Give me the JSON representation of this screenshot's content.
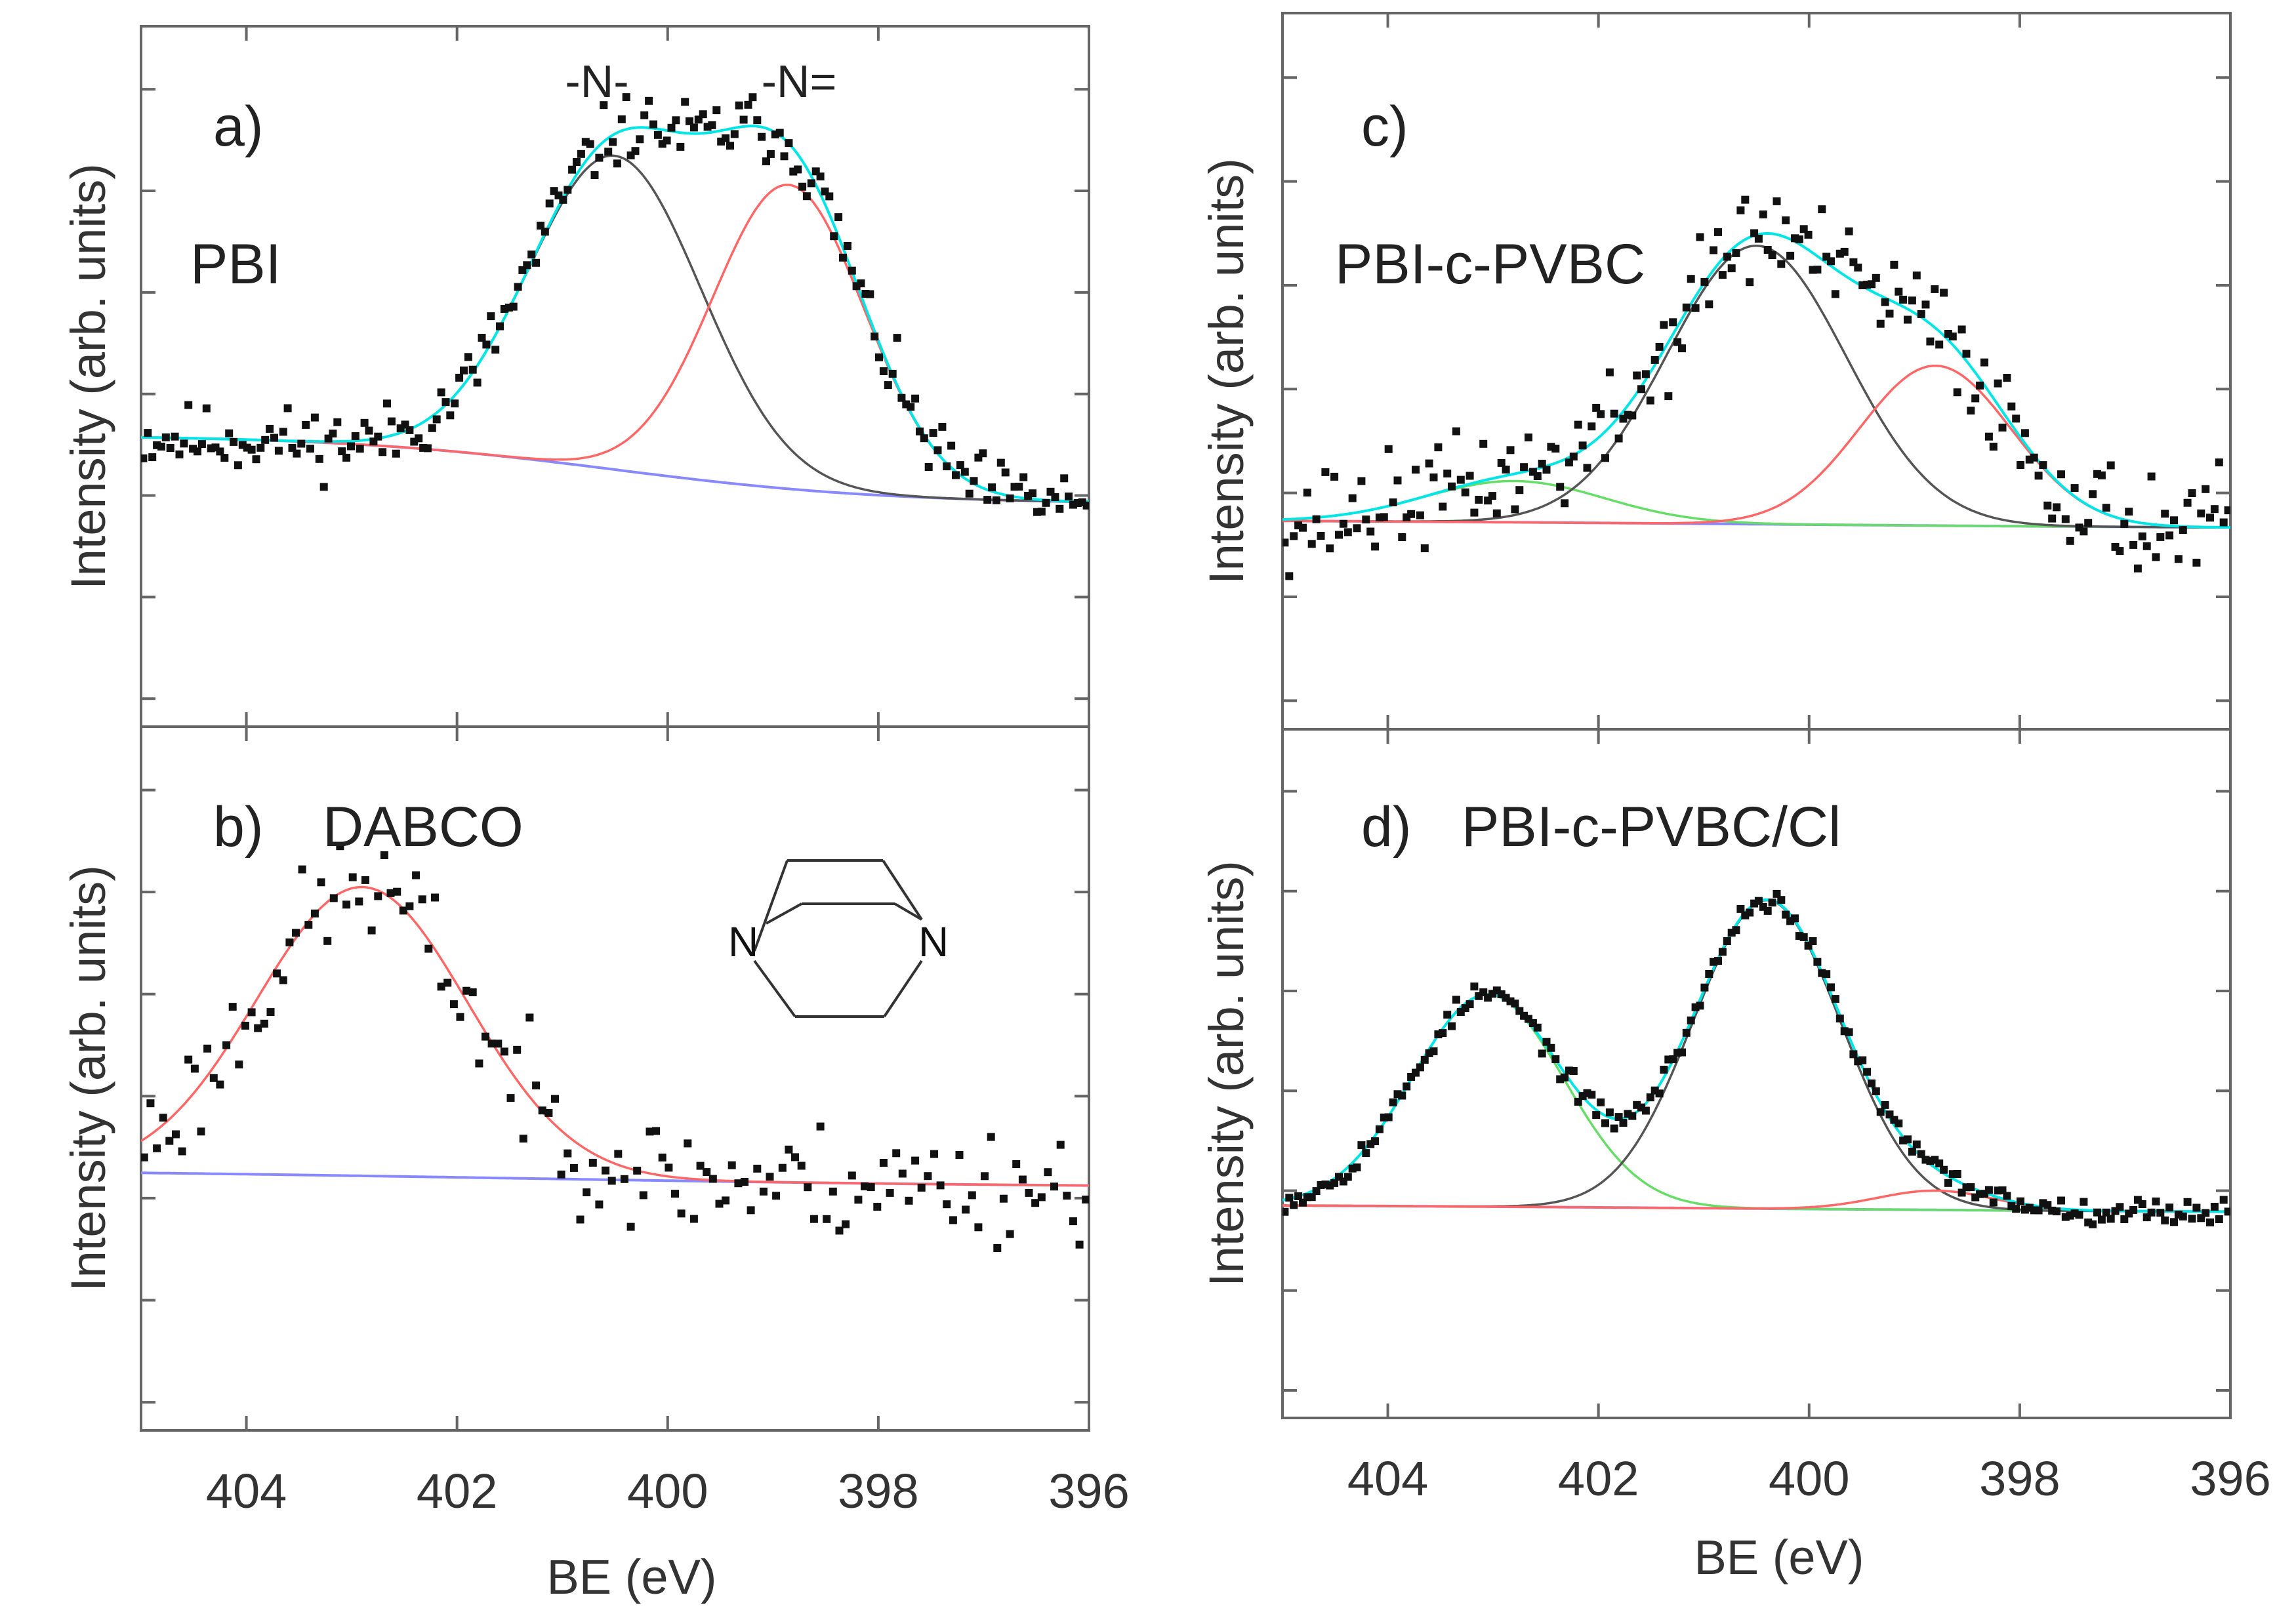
{
  "figure": {
    "xlabel": "BE (eV)",
    "ylabel": "Intensity (arb. units)"
  },
  "chart_data": [
    {
      "id": "a",
      "type": "scatter",
      "panel_label": "a)",
      "sample": "PBI",
      "xlabel": "",
      "ylabel": "Intensity (arb. units)",
      "xlim": [
        405,
        396
      ],
      "ylim": [
        0,
        100
      ],
      "xticks": [
        404,
        402,
        400,
        398,
        396
      ],
      "tick_labels_shown": false,
      "peak_labels": [
        "-N-",
        "-N="
      ],
      "background": {
        "left": 28,
        "right": 14,
        "center": 400.5,
        "width": 1.3
      },
      "components": [
        {
          "name": "-N-",
          "color": "#555555",
          "center": 400.5,
          "sigma": 0.82,
          "amplitude": 64
        },
        {
          "name": "-N=",
          "color": "#ff6666",
          "center": 398.85,
          "sigma": 0.72,
          "amplitude": 62
        }
      ],
      "envelope_color": "#00e5e5",
      "background_color": "#8888ff",
      "noise": 4.5,
      "seed": 11
    },
    {
      "id": "b",
      "type": "scatter",
      "panel_label": "b)",
      "sample": "DABCO",
      "xlabel": "BE (eV)",
      "ylabel": "Intensity (arb. units)",
      "xlim": [
        405,
        396
      ],
      "ylim": [
        0,
        100
      ],
      "xticks": [
        404,
        402,
        400,
        398,
        396
      ],
      "tick_labels_shown": true,
      "structure": {
        "name": "DABCO",
        "atoms": [
          "N",
          "N"
        ]
      },
      "background": {
        "left": 24,
        "right": 20,
        "center": 401.5,
        "width": 3.0
      },
      "components": [
        {
          "name": "DABCO N",
          "color": "#ff6666",
          "center": 402.9,
          "sigma": 1.0,
          "amplitude": 57
        }
      ],
      "envelope_color": null,
      "background_color": "#8888ff",
      "noise": 7.5,
      "seed": 23
    },
    {
      "id": "c",
      "type": "scatter",
      "panel_label": "c)",
      "sample": "PBI-c-PVBC",
      "xlabel": "",
      "ylabel": "Intensity (arb. units)",
      "xlim": [
        405,
        396
      ],
      "ylim": [
        0,
        100
      ],
      "xticks": [
        404,
        402,
        400,
        398,
        396
      ],
      "tick_labels_shown": false,
      "background": {
        "left": 13,
        "right": 11,
        "center": 400.5,
        "width": 3.0
      },
      "components": [
        {
          "name": "DABCO N",
          "color": "#66dd66",
          "center": 402.8,
          "sigma": 0.85,
          "amplitude": 8
        },
        {
          "name": "-N-",
          "color": "#555555",
          "center": 400.5,
          "sigma": 0.85,
          "amplitude": 54
        },
        {
          "name": "-N=",
          "color": "#ff6666",
          "center": 398.8,
          "sigma": 0.72,
          "amplitude": 31
        }
      ],
      "envelope_color": "#00e5e5",
      "background_color": "#8888ff",
      "noise": 6.5,
      "seed": 37
    },
    {
      "id": "d",
      "type": "scatter",
      "panel_label": "d)",
      "sample": "PBI-c-PVBC/Cl",
      "xlabel": "BE (eV)",
      "ylabel": "Intensity (arb. units)",
      "xlim": [
        405,
        396
      ],
      "ylim": [
        0,
        100
      ],
      "xticks": [
        404,
        402,
        400,
        398,
        396
      ],
      "tick_labels_shown": true,
      "background": {
        "left": 13,
        "right": 11,
        "center": 400.5,
        "width": 3.0
      },
      "components": [
        {
          "name": "DABCO N",
          "color": "#66dd66",
          "center": 403.05,
          "sigma": 0.72,
          "amplitude": 44
        },
        {
          "name": "-N-",
          "color": "#555555",
          "center": 400.4,
          "sigma": 0.7,
          "amplitude": 64
        },
        {
          "name": "-N=",
          "color": "#ff6666",
          "center": 398.8,
          "sigma": 0.55,
          "amplitude": 4
        }
      ],
      "envelope_color": "#00e5e5",
      "background_color": "#8888ff",
      "noise": 1.6,
      "seed": 53
    }
  ]
}
